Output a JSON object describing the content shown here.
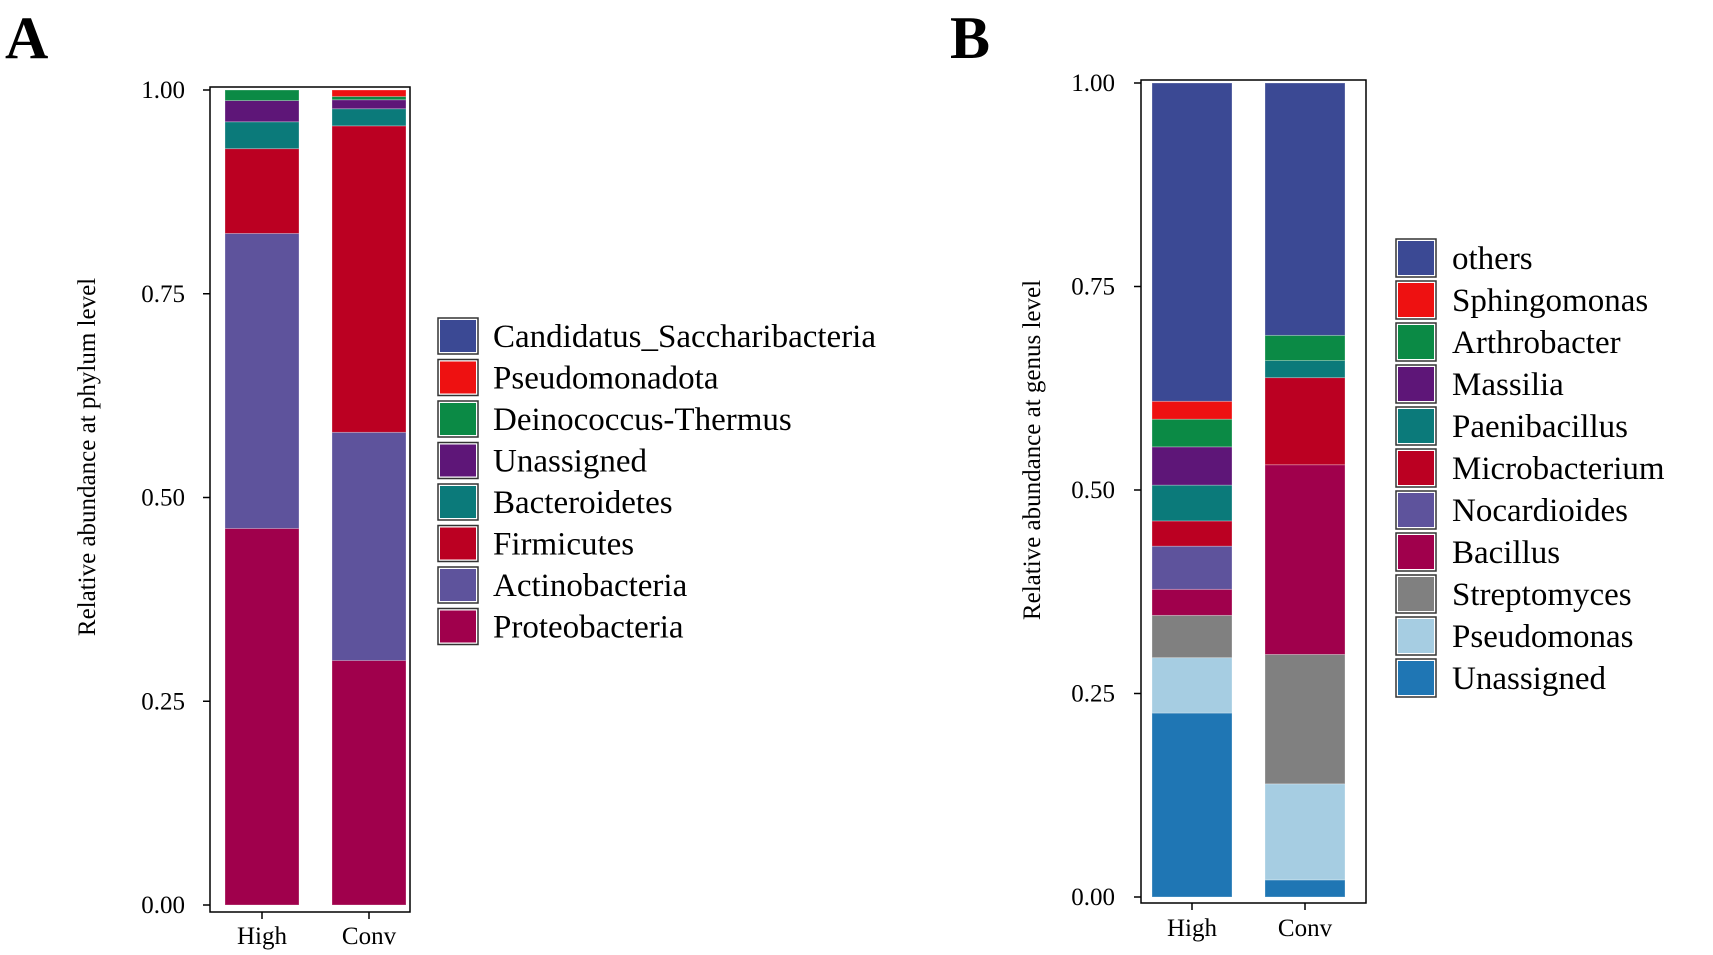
{
  "chart_data": [
    {
      "panel": "A",
      "type": "bar",
      "stacked": true,
      "title": "",
      "xlabel": "",
      "ylabel": "Relative abundance at phylum level",
      "ylim": [
        0,
        1
      ],
      "yticks": [
        "0.00",
        "0.25",
        "0.50",
        "0.75",
        "1.00"
      ],
      "categories": [
        "High",
        "Conv"
      ],
      "series": [
        {
          "name": "Proteobacteria",
          "color": "#a0004c",
          "values": [
            0.462,
            0.3
          ]
        },
        {
          "name": "Actinobacteria",
          "color": "#5e539c",
          "values": [
            0.362,
            0.28
          ]
        },
        {
          "name": "Firmicutes",
          "color": "#bb0022",
          "values": [
            0.104,
            0.376
          ]
        },
        {
          "name": "Bacteroidetes",
          "color": "#0b7a7a",
          "values": [
            0.033,
            0.021
          ]
        },
        {
          "name": "Unassigned",
          "color": "#5e1678",
          "values": [
            0.026,
            0.011
          ]
        },
        {
          "name": "Deinococcus-Thermus",
          "color": "#0b8a45",
          "values": [
            0.013,
            0.004
          ]
        },
        {
          "name": "Pseudomonadota",
          "color": "#ee1111",
          "values": [
            0.0,
            0.008
          ]
        },
        {
          "name": "Candidatus_Saccharibacteria",
          "color": "#3b4994",
          "values": [
            0.0,
            0.0
          ]
        }
      ],
      "legend_order": [
        "Candidatus_Saccharibacteria",
        "Pseudomonadota",
        "Deinococcus-Thermus",
        "Unassigned",
        "Bacteroidetes",
        "Firmicutes",
        "Actinobacteria",
        "Proteobacteria"
      ],
      "legend_position": "right"
    },
    {
      "panel": "B",
      "type": "bar",
      "stacked": true,
      "title": "",
      "xlabel": "",
      "ylabel": "Relative abundance at genus level",
      "ylim": [
        0,
        1
      ],
      "yticks": [
        "0.00",
        "0.25",
        "0.50",
        "0.75",
        "1.00"
      ],
      "categories": [
        "High",
        "Conv"
      ],
      "series": [
        {
          "name": "Unassigned",
          "color": "#1f76b4",
          "values": [
            0.226,
            0.021
          ]
        },
        {
          "name": "Pseudomonas",
          "color": "#a6cde2",
          "values": [
            0.068,
            0.118
          ]
        },
        {
          "name": "Streptomyces",
          "color": "#808080",
          "values": [
            0.052,
            0.159
          ]
        },
        {
          "name": "Bacillus",
          "color": "#a0004c",
          "values": [
            0.032,
            0.233
          ]
        },
        {
          "name": "Nocardioides",
          "color": "#5e539c",
          "values": [
            0.053,
            0.0
          ]
        },
        {
          "name": "Microbacterium",
          "color": "#bb0022",
          "values": [
            0.031,
            0.107
          ]
        },
        {
          "name": "Paenibacillus",
          "color": "#0b7a7a",
          "values": [
            0.044,
            0.021
          ]
        },
        {
          "name": "Massilia",
          "color": "#5e1678",
          "values": [
            0.047,
            0.0
          ]
        },
        {
          "name": "Arthrobacter",
          "color": "#0b8a45",
          "values": [
            0.034,
            0.031
          ]
        },
        {
          "name": "Sphingomonas",
          "color": "#ee1111",
          "values": [
            0.022,
            0.0
          ]
        },
        {
          "name": "others",
          "color": "#3b4994",
          "values": [
            0.391,
            0.31
          ]
        }
      ],
      "legend_order": [
        "others",
        "Sphingomonas",
        "Arthrobacter",
        "Massilia",
        "Paenibacillus",
        "Microbacterium",
        "Nocardioides",
        "Bacillus",
        "Streptomyces",
        "Pseudomonas",
        "Unassigned"
      ],
      "legend_position": "right"
    }
  ]
}
